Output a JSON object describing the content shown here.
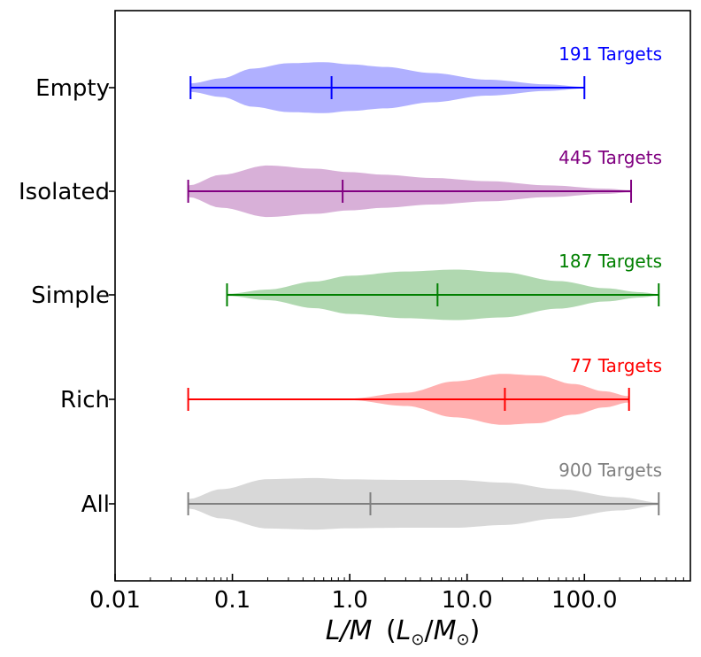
{
  "chart_data": {
    "type": "violin",
    "xscale": "log",
    "xlim": [
      0.01,
      800
    ],
    "x_ticks": [
      {
        "value": 0.01,
        "label": "0.01"
      },
      {
        "value": 0.1,
        "label": "0.1"
      },
      {
        "value": 1,
        "label": "1.0"
      },
      {
        "value": 10,
        "label": "10.0"
      },
      {
        "value": 100,
        "label": "100.0"
      }
    ],
    "xlabel": {
      "main": "L/M",
      "paren_open": "(",
      "L": "L",
      "M": "M",
      "sub": "⊙",
      "slash": "/",
      "paren_close": ")"
    },
    "series": [
      {
        "name": "Empty",
        "color": "#0000ff",
        "fill": "#b0b0ff",
        "count_label": "191 Targets",
        "min": 0.044,
        "median": 0.7,
        "max": 100,
        "density": [
          [
            0.044,
            0.16
          ],
          [
            0.08,
            0.35
          ],
          [
            0.15,
            0.72
          ],
          [
            0.3,
            0.92
          ],
          [
            0.6,
            0.96
          ],
          [
            1.0,
            0.88
          ],
          [
            2,
            0.78
          ],
          [
            5,
            0.55
          ],
          [
            15,
            0.3
          ],
          [
            50,
            0.12
          ],
          [
            100,
            0.03
          ]
        ]
      },
      {
        "name": "Isolated",
        "color": "#800080",
        "fill": "#d8b0d8",
        "count_label": "445 Targets",
        "min": 0.042,
        "median": 0.87,
        "max": 250,
        "density": [
          [
            0.042,
            0.22
          ],
          [
            0.08,
            0.62
          ],
          [
            0.2,
            0.97
          ],
          [
            0.5,
            0.85
          ],
          [
            1.0,
            0.72
          ],
          [
            2,
            0.62
          ],
          [
            5,
            0.5
          ],
          [
            15,
            0.38
          ],
          [
            50,
            0.22
          ],
          [
            150,
            0.1
          ],
          [
            250,
            0.04
          ]
        ]
      },
      {
        "name": "Simple",
        "color": "#008000",
        "fill": "#b0d8b0",
        "count_label": "187 Targets",
        "min": 0.09,
        "median": 5.6,
        "max": 430,
        "density": [
          [
            0.09,
            0.04
          ],
          [
            0.2,
            0.2
          ],
          [
            0.5,
            0.5
          ],
          [
            1.0,
            0.72
          ],
          [
            3,
            0.88
          ],
          [
            8,
            0.95
          ],
          [
            20,
            0.85
          ],
          [
            60,
            0.52
          ],
          [
            150,
            0.25
          ],
          [
            300,
            0.1
          ],
          [
            430,
            0.03
          ]
        ]
      },
      {
        "name": "Rich",
        "color": "#ff0000",
        "fill": "#ffb0b0",
        "count_label": "77 Targets",
        "min": 0.042,
        "median": 21,
        "max": 240,
        "density": [
          [
            0.6,
            0
          ],
          [
            1.0,
            0.03
          ],
          [
            3,
            0.25
          ],
          [
            8,
            0.68
          ],
          [
            20,
            0.96
          ],
          [
            40,
            0.9
          ],
          [
            80,
            0.58
          ],
          [
            150,
            0.3
          ],
          [
            240,
            0.12
          ]
        ]
      },
      {
        "name": "All",
        "color": "#808080",
        "fill": "#d8d8d8",
        "count_label": "900 Targets",
        "min": 0.042,
        "median": 1.5,
        "max": 430,
        "density": [
          [
            0.042,
            0.18
          ],
          [
            0.08,
            0.55
          ],
          [
            0.2,
            0.93
          ],
          [
            0.5,
            0.97
          ],
          [
            1.0,
            0.92
          ],
          [
            3,
            0.9
          ],
          [
            8,
            0.9
          ],
          [
            20,
            0.8
          ],
          [
            60,
            0.55
          ],
          [
            200,
            0.25
          ],
          [
            430,
            0.05
          ]
        ]
      }
    ]
  }
}
